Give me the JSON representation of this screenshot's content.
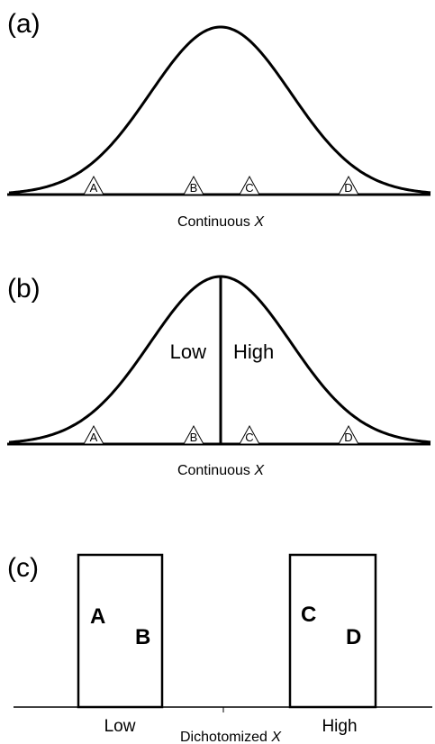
{
  "panels": [
    {
      "label": "(a)",
      "points": [
        "A",
        "B",
        "C",
        "D"
      ],
      "axis_label": {
        "text": "Continuous",
        "variable": "X"
      }
    },
    {
      "label": "(b)",
      "points": [
        "A",
        "B",
        "C",
        "D"
      ],
      "regions": [
        "Low",
        "High"
      ],
      "axis_label": {
        "text": "Continuous",
        "variable": "X"
      }
    },
    {
      "label": "(c)",
      "groups": [
        {
          "name": "Low",
          "points": [
            "A",
            "B"
          ]
        },
        {
          "name": "High",
          "points": [
            "C",
            "D"
          ]
        }
      ],
      "axis_label": {
        "text": "Dichotomized",
        "variable": "X"
      }
    }
  ]
}
